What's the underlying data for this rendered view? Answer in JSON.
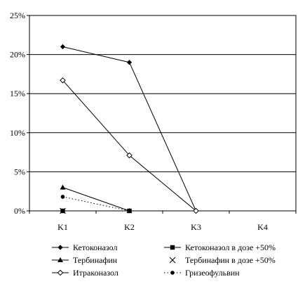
{
  "chart_data": {
    "type": "line",
    "title": "",
    "xlabel": "",
    "ylabel": "",
    "categories": [
      "K1",
      "K2",
      "K3",
      "K4"
    ],
    "y_ticks": [
      "0%",
      "5%",
      "10%",
      "15%",
      "20%",
      "25%"
    ],
    "ylim": [
      0,
      25
    ],
    "grid": "horizontal",
    "legend_position": "bottom",
    "series": [
      {
        "name": "Кетоконазол",
        "marker": "diamond",
        "line": "solid",
        "values": [
          21,
          19,
          0,
          null
        ]
      },
      {
        "name": "Кетоконазол в дозе +50%",
        "marker": "square",
        "line": "solid",
        "values": [
          0,
          0,
          null,
          null
        ]
      },
      {
        "name": "Тербинафин",
        "marker": "triangle",
        "line": "solid",
        "values": [
          3,
          0,
          null,
          null
        ]
      },
      {
        "name": "Тербинафин в дозе +50%",
        "marker": "x",
        "line": "none",
        "values": [
          0,
          null,
          null,
          null
        ]
      },
      {
        "name": "Итраконазол",
        "marker": "open-diamond",
        "line": "solid",
        "values": [
          16.7,
          7.1,
          0,
          null
        ]
      },
      {
        "name": "Гризеофульвин",
        "marker": "circle",
        "line": "dotted",
        "values": [
          1.8,
          0,
          null,
          null
        ]
      }
    ]
  }
}
